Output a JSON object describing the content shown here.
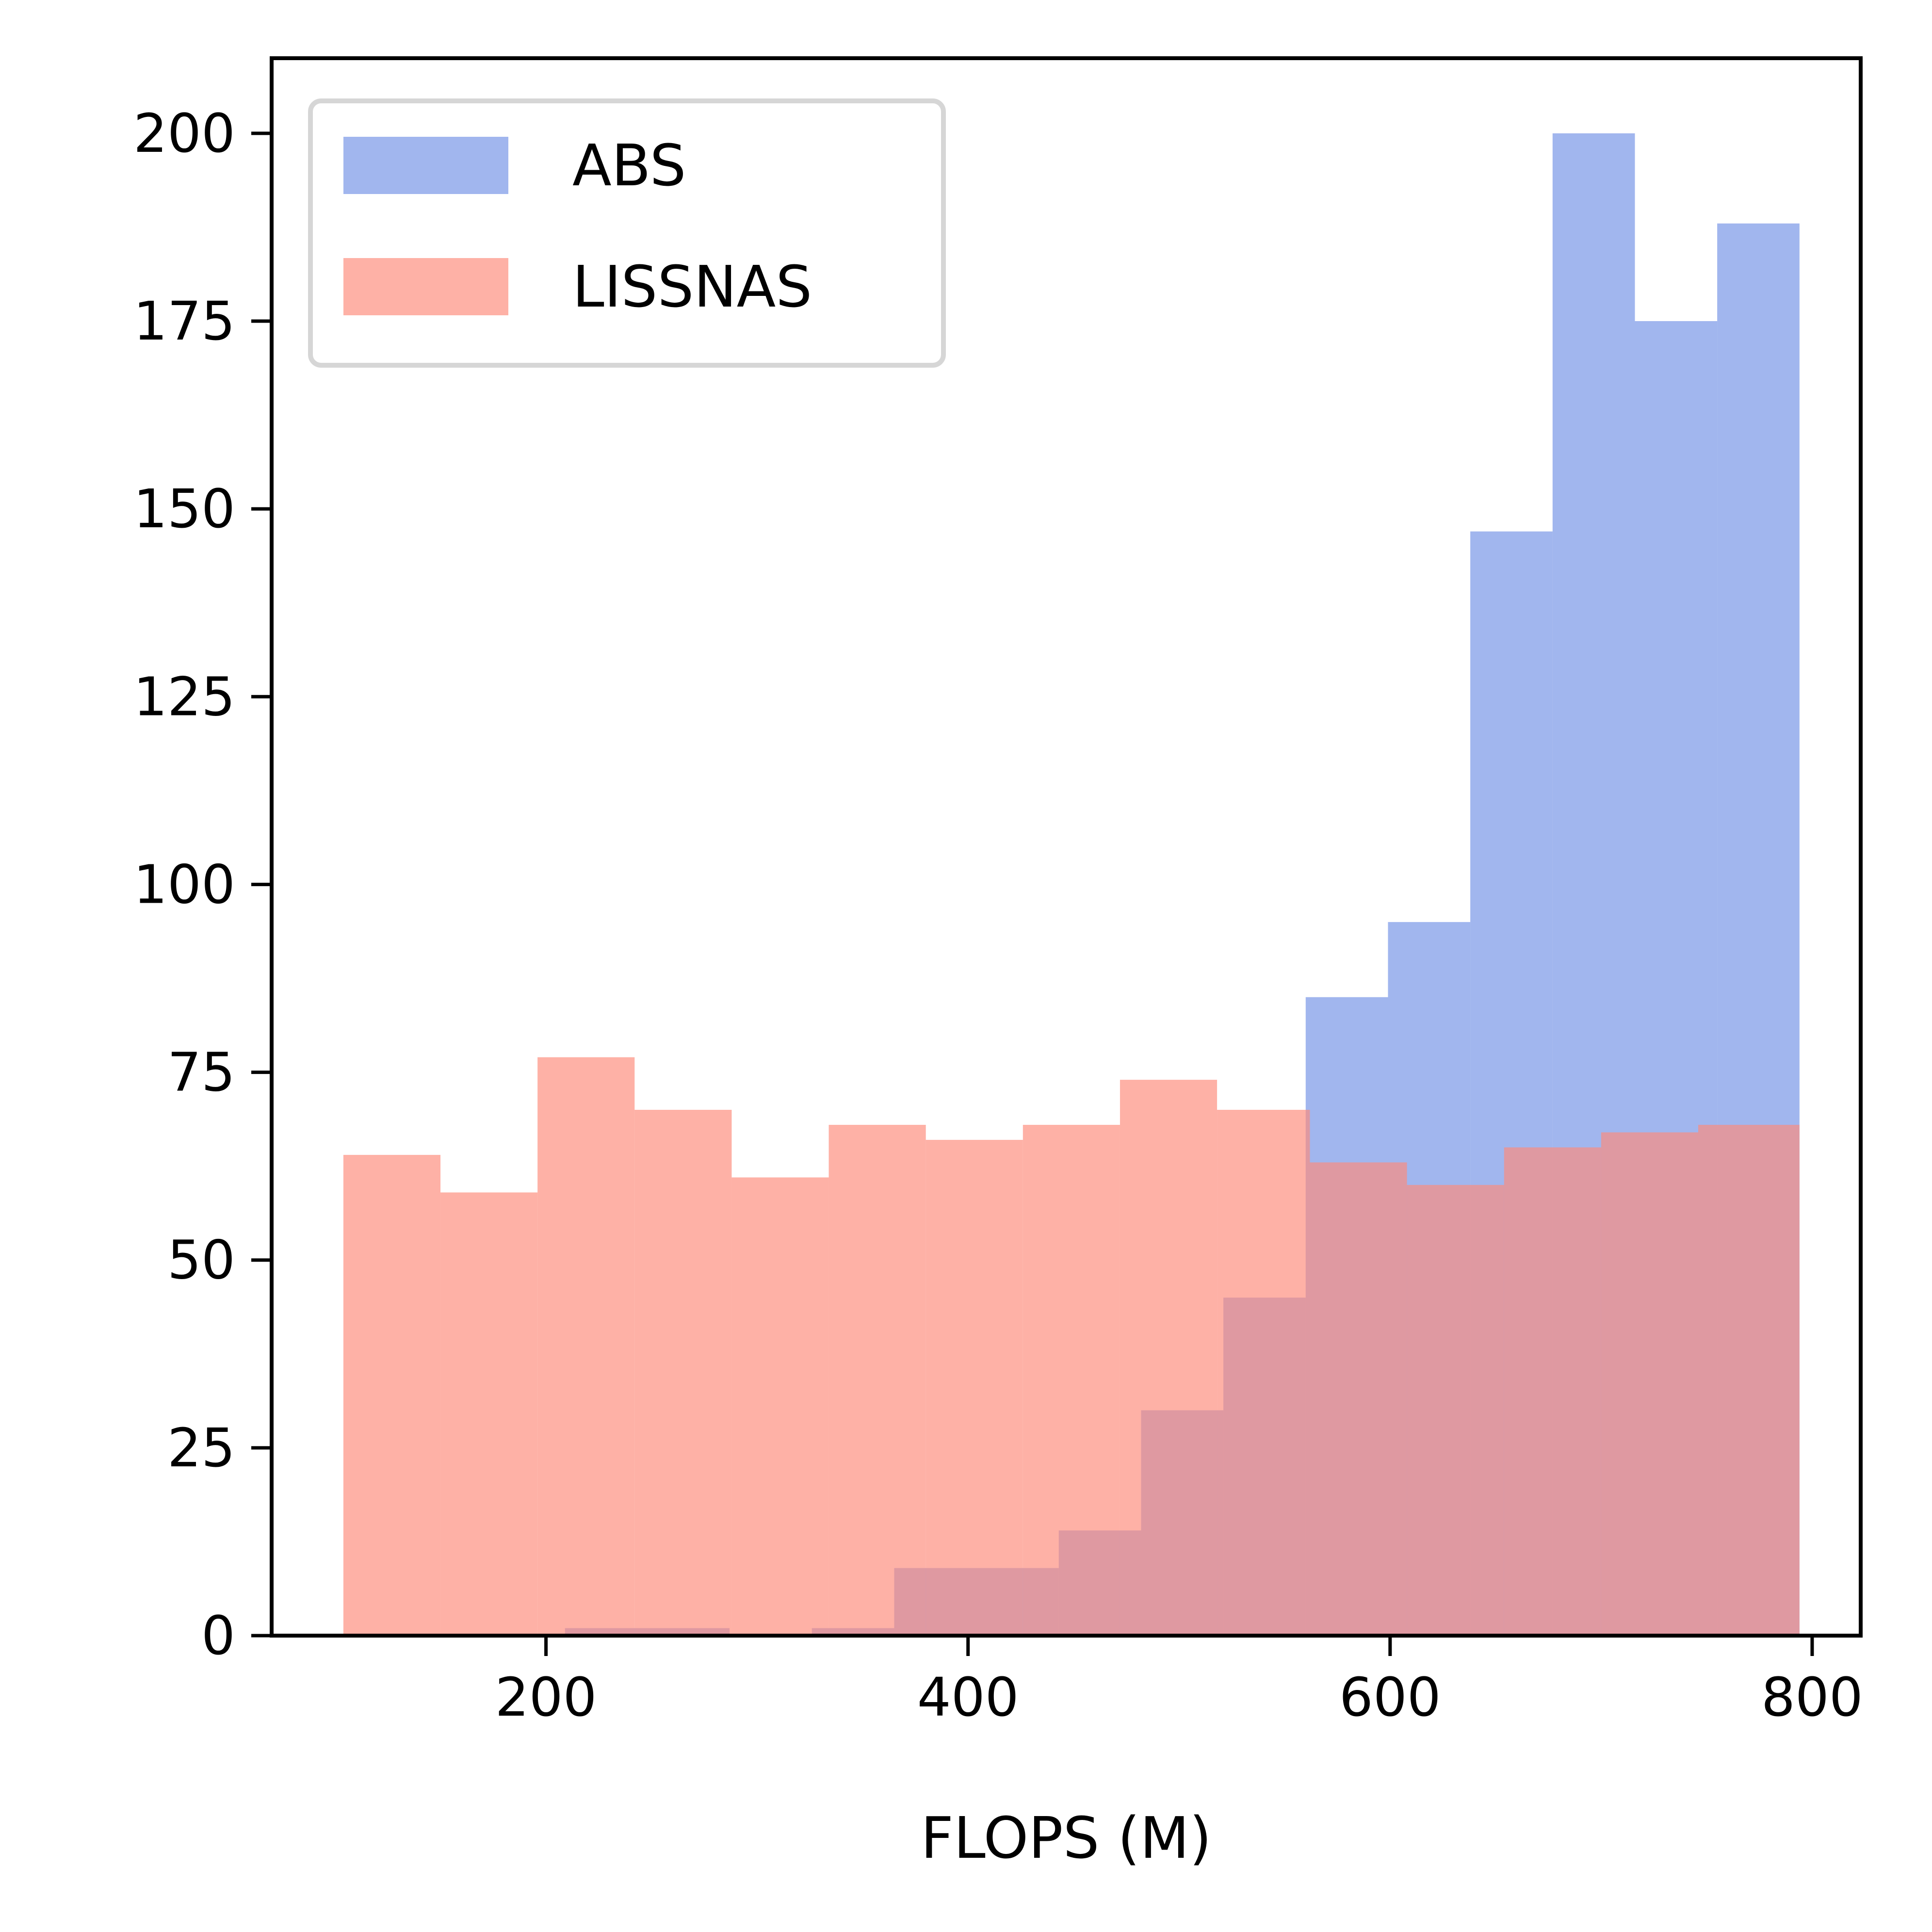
{
  "chart_data": {
    "type": "histogram",
    "title": "",
    "xlabel": "FLOPS (M)",
    "ylabel": "",
    "xlim": [
      70,
      823
    ],
    "ylim": [
      0,
      210
    ],
    "xticks": [
      200,
      400,
      600,
      800
    ],
    "yticks": [
      0,
      25,
      50,
      75,
      100,
      125,
      150,
      175,
      200
    ],
    "grid": false,
    "legend": {
      "placement": "top-left"
    },
    "series": [
      {
        "name": "ABS",
        "color": "#6a8ce4",
        "opacity": 0.63,
        "bins": [
          {
            "x0": 209,
            "x1": 248,
            "count": 1
          },
          {
            "x0": 248,
            "x1": 287,
            "count": 1
          },
          {
            "x0": 326,
            "x1": 365,
            "count": 1
          },
          {
            "x0": 365,
            "x1": 404,
            "count": 9
          },
          {
            "x0": 404,
            "x1": 443,
            "count": 9
          },
          {
            "x0": 443,
            "x1": 482,
            "count": 14
          },
          {
            "x0": 482,
            "x1": 521,
            "count": 30
          },
          {
            "x0": 521,
            "x1": 560,
            "count": 45
          },
          {
            "x0": 560,
            "x1": 599,
            "count": 85
          },
          {
            "x0": 599,
            "x1": 638,
            "count": 95
          },
          {
            "x0": 638,
            "x1": 677,
            "count": 147
          },
          {
            "x0": 677,
            "x1": 716,
            "count": 200
          },
          {
            "x0": 716,
            "x1": 755,
            "count": 175
          },
          {
            "x0": 755,
            "x1": 794,
            "count": 188
          }
        ]
      },
      {
        "name": "LISSNAS",
        "color": "#fe8a7b",
        "opacity": 0.67,
        "bins": [
          {
            "x0": 104,
            "x1": 150,
            "count": 64
          },
          {
            "x0": 150,
            "x1": 196,
            "count": 59
          },
          {
            "x0": 196,
            "x1": 242,
            "count": 77
          },
          {
            "x0": 242,
            "x1": 288,
            "count": 70
          },
          {
            "x0": 288,
            "x1": 334,
            "count": 61
          },
          {
            "x0": 334,
            "x1": 380,
            "count": 68
          },
          {
            "x0": 380,
            "x1": 426,
            "count": 66
          },
          {
            "x0": 426,
            "x1": 472,
            "count": 68
          },
          {
            "x0": 472,
            "x1": 518,
            "count": 74
          },
          {
            "x0": 518,
            "x1": 562,
            "count": 70
          },
          {
            "x0": 562,
            "x1": 608,
            "count": 63
          },
          {
            "x0": 608,
            "x1": 654,
            "count": 60
          },
          {
            "x0": 654,
            "x1": 700,
            "count": 65
          },
          {
            "x0": 700,
            "x1": 746,
            "count": 67
          },
          {
            "x0": 746,
            "x1": 794,
            "count": 68
          }
        ]
      }
    ]
  }
}
